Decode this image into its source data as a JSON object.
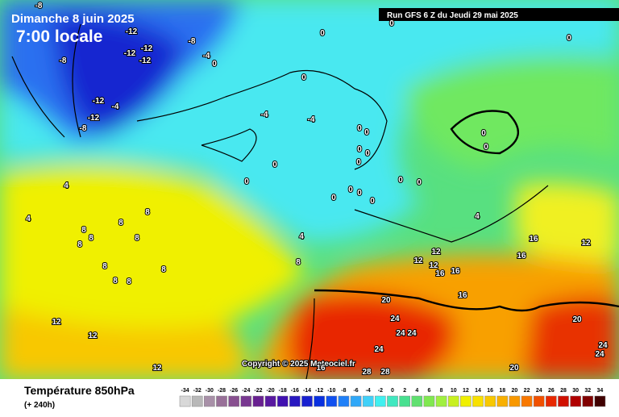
{
  "header": {
    "date": "Dimanche 8 juin 2025",
    "time": "7:00 locale",
    "run": "Run GFS 6 Z du Jeudi 29 mai 2025"
  },
  "copyright": "Copyright © 2025 Meteociel.fr",
  "footer": {
    "title": "Température 850hPa",
    "lead": "(+ 240h)"
  },
  "legend": {
    "values": [
      -34,
      -32,
      -30,
      -28,
      -26,
      -24,
      -22,
      -20,
      -18,
      -16,
      -14,
      -12,
      -10,
      -8,
      -6,
      -4,
      -2,
      0,
      2,
      4,
      6,
      8,
      10,
      12,
      14,
      16,
      18,
      20,
      22,
      24,
      26,
      28,
      30,
      32,
      34
    ],
    "colors": [
      "#d8d8d8",
      "#b8b8b8",
      "#a890a8",
      "#987098",
      "#885090",
      "#783890",
      "#682090",
      "#5818a0",
      "#4010b0",
      "#2818c0",
      "#1820d0",
      "#0830e0",
      "#1050f0",
      "#2080f8",
      "#30a8f8",
      "#40d0f8",
      "#40f0f0",
      "#40e8c0",
      "#48e090",
      "#60e070",
      "#80e850",
      "#a0f040",
      "#c8f020",
      "#f0f000",
      "#f8e000",
      "#f8c800",
      "#f8b000",
      "#f89800",
      "#f87800",
      "#f05000",
      "#e82800",
      "#d01000",
      "#b00000",
      "#800000",
      "#400000"
    ]
  },
  "map_labels": [
    -8,
    -12,
    -8,
    -12,
    -12,
    -8,
    -12,
    -4,
    -12,
    -4,
    -12,
    -8,
    0,
    0,
    0,
    0,
    0,
    -4,
    -4,
    0,
    0,
    0,
    0,
    0,
    0,
    0,
    0,
    0,
    0,
    0,
    0,
    0,
    0,
    0,
    4,
    4,
    4,
    4,
    8,
    8,
    8,
    8,
    8,
    8,
    8,
    8,
    8,
    8,
    8,
    12,
    12,
    12,
    12,
    12,
    12,
    12,
    16,
    16,
    16,
    16,
    16,
    16,
    20,
    20,
    20,
    24,
    24,
    24,
    24,
    24,
    24,
    28,
    28
  ]
}
